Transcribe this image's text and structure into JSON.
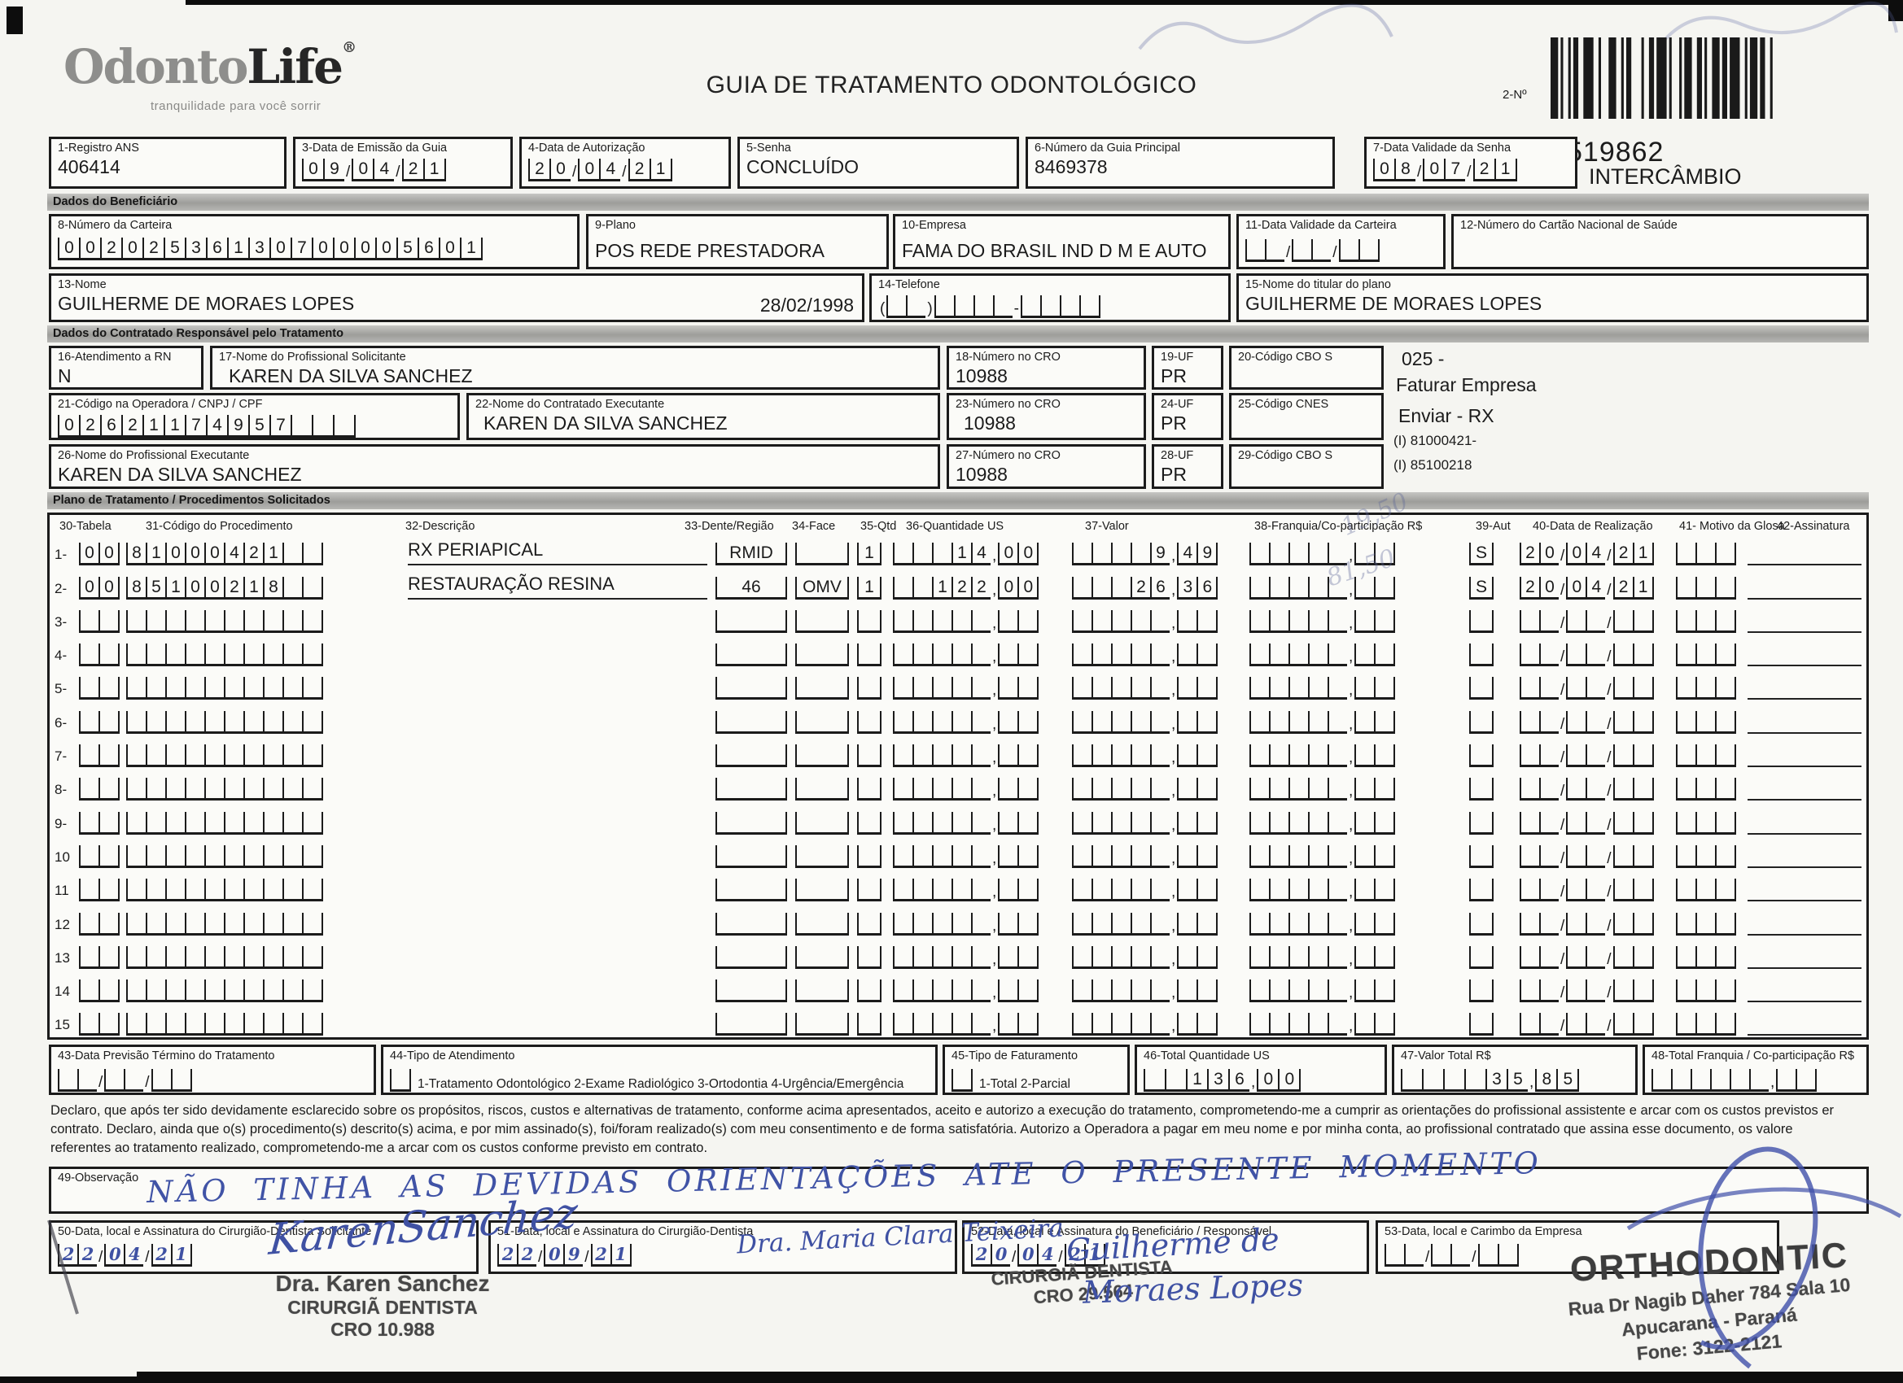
{
  "header": {
    "logo_main_gray": "Odonto",
    "logo_main_black": "Life",
    "logo_reg": "®",
    "logo_tagline": "tranquilidade para você sorrir",
    "title": "GUIA DE TRATAMENTO ODONTOLÓGICO",
    "barcode_label": "2-Nº",
    "guide_number": "519862",
    "guide_type": "INTERCÂMBIO"
  },
  "sections": {
    "beneficiario": "Dados do Beneficiário",
    "contratado": "Dados do Contratado Responsável pelo Tratamento",
    "plano": "Plano de Tratamento / Procedimentos Solicitados"
  },
  "fields": {
    "f1": {
      "label": "1-Registro ANS",
      "value": "406414"
    },
    "f3": {
      "label": "3-Data de Emissão da Guia",
      "value": "09/04/21"
    },
    "f4": {
      "label": "4-Data de Autorização",
      "value": "20/04/21"
    },
    "f5": {
      "label": "5-Senha",
      "value": "CONCLUÍDO"
    },
    "f6": {
      "label": "6-Número da Guia Principal",
      "value": "8469378"
    },
    "f7": {
      "label": "7-Data Validade da Senha",
      "value": "08/07/21"
    },
    "f8": {
      "label": "8-Número da Carteira",
      "value": "00202536130700005601"
    },
    "f9": {
      "label": "9-Plano",
      "value": "POS REDE PRESTADORA"
    },
    "f10": {
      "label": "10-Empresa",
      "value": "FAMA DO BRASIL IND D M E AUTO"
    },
    "f11": {
      "label": "11-Data Validade da Carteira",
      "value": "  /  /  "
    },
    "f12": {
      "label": "12-Número do Cartão Nacional de Saúde",
      "value": ""
    },
    "f13": {
      "label": "13-Nome",
      "value": "GUILHERME DE MORAES LOPES",
      "extra": "28/02/1998"
    },
    "f14": {
      "label": "14-Telefone",
      "value": "(  )    -    "
    },
    "f15": {
      "label": "15-Nome do titular do plano",
      "value": "GUILHERME DE MORAES LOPES"
    },
    "f16": {
      "label": "16-Atendimento a RN",
      "value": "N"
    },
    "f17": {
      "label": "17-Nome do Profissional Solicitante",
      "value": "KAREN DA SILVA SANCHEZ"
    },
    "f18": {
      "label": "18-Número no CRO",
      "value": "10988"
    },
    "f19": {
      "label": "19-UF",
      "value": "PR"
    },
    "f20": {
      "label": "20-Código CBO S",
      "value": ""
    },
    "f21": {
      "label": "21-Código na Operadora / CNPJ / CPF",
      "value": "02621174957   "
    },
    "f22": {
      "label": "22-Nome do Contratado Executante",
      "value": "KAREN DA SILVA SANCHEZ"
    },
    "f23": {
      "label": "23-Número no CRO",
      "value": "10988"
    },
    "f24": {
      "label": "24-UF",
      "value": "PR"
    },
    "f25": {
      "label": "25-Código CNES",
      "value": ""
    },
    "f26": {
      "label": "26-Nome do Profissional Executante",
      "value": "KAREN DA SILVA SANCHEZ"
    },
    "f27": {
      "label": "27-Número no CRO",
      "value": "10988"
    },
    "f28": {
      "label": "28-UF",
      "value": "PR"
    },
    "f29": {
      "label": "29-Código CBO S",
      "value": ""
    },
    "f43": {
      "label": "43-Data Previsão Término do Tratamento",
      "value": "  /  /  "
    },
    "f44": {
      "label": "44-Tipo de Atendimento",
      "value": " ",
      "options": "1-Tratamento Odontológico  2-Exame Radiológico  3-Ortodontia  4-Urgência/Emergência"
    },
    "f45": {
      "label": "45-Tipo de Faturamento",
      "value": " ",
      "options": "1-Total  2-Parcial"
    },
    "f46": {
      "label": "46-Total Quantidade US",
      "value": "  136,00"
    },
    "f47": {
      "label": "47-Valor Total R$",
      "value": "    35,85"
    },
    "f48": {
      "label": "48-Total Franquia / Co-participação R$",
      "value": "      ,  "
    },
    "f49": {
      "label": "49-Observação"
    },
    "f50": {
      "label": "50-Data, local e Assinatura do Cirurgião-Dentista Solicitante",
      "date": "22/04/21"
    },
    "f51": {
      "label": "51-Data, local e Assinatura do Cirurgião-Dentista",
      "date": "22/09/21"
    },
    "f52": {
      "label": "52-Data, local e Assinatura do Beneficiário / Responsável",
      "date": "20/04/21"
    },
    "f53": {
      "label": "53-Data, local e Carimbo da Empresa",
      "value": "  /  /  "
    }
  },
  "side_notes": {
    "l1": "025 -",
    "l2": "Faturar Empresa",
    "l3": "Enviar - RX",
    "l4": "(I) 81000421-",
    "l5": "(I) 85100218"
  },
  "table": {
    "columns": [
      "30-Tabela",
      "31-Código do Procedimento",
      "32-Descrição",
      "33-Dente/Região",
      "34-Face",
      "35-Qtd",
      "36-Quantidade US",
      "37-Valor",
      "38-Franquia/Co-participação R$",
      "39-Aut",
      "40-Data de Realização",
      "41- Motivo da Glosa",
      "42-Assinatura"
    ],
    "rows": [
      {
        "n": "1-",
        "tab": "00",
        "cod": "81000421  ",
        "desc": "RX PERIAPICAL",
        "dente": "RMID",
        "face": " ",
        "qtd": "1",
        "qus": "   14,00",
        "val": "    9,49",
        "fra": "     ,  ",
        "aut": "S",
        "data": "20/04/21",
        "glo": "   "
      },
      {
        "n": "2-",
        "tab": "00",
        "cod": "85100218  ",
        "desc": "RESTAURAÇÃO RESINA",
        "dente": "46",
        "face": "OMV",
        "qtd": "1",
        "qus": "  122,00",
        "val": "   26,36",
        "fra": "     ,  ",
        "aut": "S",
        "data": "20/04/21",
        "glo": "   "
      },
      {
        "n": "3-",
        "tab": "  ",
        "cod": "          ",
        "desc": "",
        "dente": " ",
        "face": " ",
        "qtd": " ",
        "qus": "     ,  ",
        "val": "     ,  ",
        "fra": "     ,  ",
        "aut": " ",
        "data": "  /  /  ",
        "glo": "   "
      },
      {
        "n": "4-",
        "tab": "  ",
        "cod": "          ",
        "desc": "",
        "dente": " ",
        "face": " ",
        "qtd": " ",
        "qus": "     ,  ",
        "val": "     ,  ",
        "fra": "     ,  ",
        "aut": " ",
        "data": "  /  /  ",
        "glo": "   "
      },
      {
        "n": "5-",
        "tab": "  ",
        "cod": "          ",
        "desc": "",
        "dente": " ",
        "face": " ",
        "qtd": " ",
        "qus": "     ,  ",
        "val": "     ,  ",
        "fra": "     ,  ",
        "aut": " ",
        "data": "  /  /  ",
        "glo": "   "
      },
      {
        "n": "6-",
        "tab": "  ",
        "cod": "          ",
        "desc": "",
        "dente": " ",
        "face": " ",
        "qtd": " ",
        "qus": "     ,  ",
        "val": "     ,  ",
        "fra": "     ,  ",
        "aut": " ",
        "data": "  /  /  ",
        "glo": "   "
      },
      {
        "n": "7-",
        "tab": "  ",
        "cod": "          ",
        "desc": "",
        "dente": " ",
        "face": " ",
        "qtd": " ",
        "qus": "     ,  ",
        "val": "     ,  ",
        "fra": "     ,  ",
        "aut": " ",
        "data": "  /  /  ",
        "glo": "   "
      },
      {
        "n": "8-",
        "tab": "  ",
        "cod": "          ",
        "desc": "",
        "dente": " ",
        "face": " ",
        "qtd": " ",
        "qus": "     ,  ",
        "val": "     ,  ",
        "fra": "     ,  ",
        "aut": " ",
        "data": "  /  /  ",
        "glo": "   "
      },
      {
        "n": "9-",
        "tab": "  ",
        "cod": "          ",
        "desc": "",
        "dente": " ",
        "face": " ",
        "qtd": " ",
        "qus": "     ,  ",
        "val": "     ,  ",
        "fra": "     ,  ",
        "aut": " ",
        "data": "  /  /  ",
        "glo": "   "
      },
      {
        "n": "10",
        "tab": "  ",
        "cod": "          ",
        "desc": "",
        "dente": " ",
        "face": " ",
        "qtd": " ",
        "qus": "     ,  ",
        "val": "     ,  ",
        "fra": "     ,  ",
        "aut": " ",
        "data": "  /  /  ",
        "glo": "   "
      },
      {
        "n": "11",
        "tab": "  ",
        "cod": "          ",
        "desc": "",
        "dente": " ",
        "face": " ",
        "qtd": " ",
        "qus": "     ,  ",
        "val": "     ,  ",
        "fra": "     ,  ",
        "aut": " ",
        "data": "  /  /  ",
        "glo": "   "
      },
      {
        "n": "12",
        "tab": "  ",
        "cod": "          ",
        "desc": "",
        "dente": " ",
        "face": " ",
        "qtd": " ",
        "qus": "     ,  ",
        "val": "     ,  ",
        "fra": "     ,  ",
        "aut": " ",
        "data": "  /  /  ",
        "glo": "   "
      },
      {
        "n": "13",
        "tab": "  ",
        "cod": "          ",
        "desc": "",
        "dente": " ",
        "face": " ",
        "qtd": " ",
        "qus": "     ,  ",
        "val": "     ,  ",
        "fra": "     ,  ",
        "aut": " ",
        "data": "  /  /  ",
        "glo": "   "
      },
      {
        "n": "14",
        "tab": "  ",
        "cod": "          ",
        "desc": "",
        "dente": " ",
        "face": " ",
        "qtd": " ",
        "qus": "     ,  ",
        "val": "     ,  ",
        "fra": "     ,  ",
        "aut": " ",
        "data": "  /  /  ",
        "glo": "   "
      },
      {
        "n": "15",
        "tab": "  ",
        "cod": "          ",
        "desc": "",
        "dente": " ",
        "face": " ",
        "qtd": " ",
        "qus": "     ,  ",
        "val": "     ,  ",
        "fra": "     ,  ",
        "aut": " ",
        "data": "  /  /  ",
        "glo": "   "
      }
    ]
  },
  "pencil_notes": {
    "r1": "19,50",
    "r2": "81,50"
  },
  "declaration": {
    "l1": "Declaro, que após ter sido devidamente esclarecido sobre os propósitos, riscos, custos e alternativas de tratamento, conforme acima apresentados, aceito e autorizo a execução do tratamento, comprometendo-me a cumprir as orientações do profissional assistente e arcar com os custos previstos er",
    "l2": "contrato. Declaro, ainda que o(s) procedimento(s) descrito(s) acima, e por mim assinado(s), foi/foram realizado(s) com meu consentimento e de forma satisfatória. Autorizo a Operadora a pagar em meu nome e por minha conta, ao profissional contratado que assina esse documento, os valore",
    "l3": "referentes ao tratamento realizado, comprometendo-me a arcar com os custos conforme previsto em contrato."
  },
  "observation_handwriting": "NÃO TINHA AS DEVIDAS ORIENTAÇÕES ATE O PRESENTE MOMENTO",
  "signatures": {
    "s50": {
      "signature": "KarenSanchez",
      "stamp1": "Dra. Karen Sanchez",
      "stamp2": "CIRURGIÃ DENTISTA",
      "stamp3": "CRO 10.988"
    },
    "s51": {
      "signature": "Dra. Maria Clara Teixeira",
      "stamp1": "CIRURGIÃ DENTISTA",
      "stamp2": "CRO 29.564"
    },
    "s52": {
      "signature1": "Guilherme de",
      "signature2": "Moraes Lopes"
    },
    "s53": {
      "stamp_name": "ORTHODONTIC",
      "addr1": "Rua Dr  Nagib Daher 784   Sala 10",
      "addr2": "Apucarana - Paraná",
      "addr3": "Fone: 3122-2121"
    }
  },
  "colors": {
    "ink": "#1b1b1b",
    "hand_blue": "#3f51a3",
    "stamp_gray": "#474747"
  }
}
